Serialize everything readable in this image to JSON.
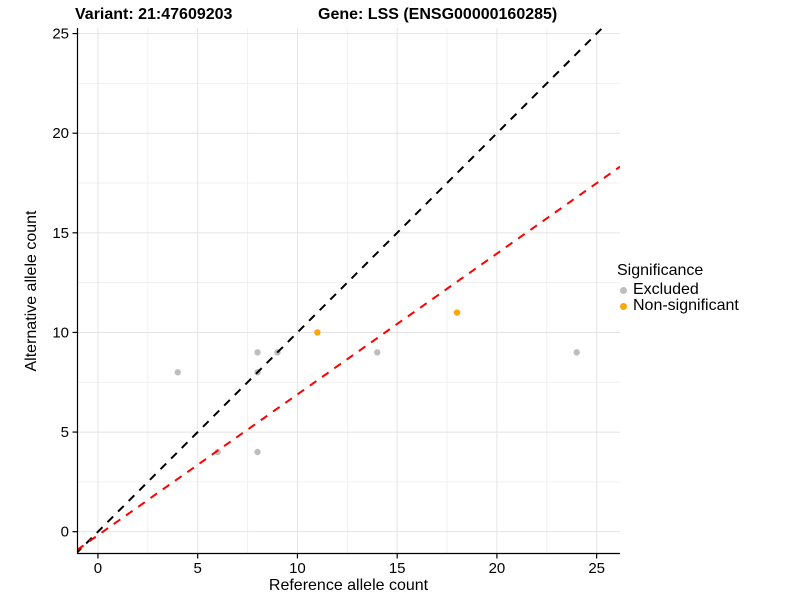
{
  "title": {
    "variant": "Variant: 21:47609203",
    "gene": "Gene: LSS (ENSG00000160285)"
  },
  "chart_data": {
    "type": "scatter",
    "xlabel": "Reference allele count",
    "ylabel": "Alternative allele count",
    "xlim": [
      -1.05,
      26.17
    ],
    "ylim": [
      -1.12,
      25.28
    ],
    "xticks": [
      0,
      5,
      10,
      15,
      20,
      25
    ],
    "yticks": [
      0,
      5,
      10,
      15,
      20,
      25
    ],
    "minor_xticks": [
      2.5,
      7.5,
      12.5,
      17.5,
      22.5
    ],
    "minor_yticks": [
      2.5,
      7.5,
      12.5,
      17.5,
      22.5
    ],
    "grid": true,
    "colors": {
      "excluded": "#BEBEBE",
      "non_significant": "#FFA500",
      "identity_line": "#000000",
      "fit_line": "#FF0000",
      "grid_major": "#E4E4E4",
      "grid_minor": "#F1F1F1",
      "axis_line": "#000000"
    },
    "series": [
      {
        "name": "Excluded",
        "color": "#BEBEBE",
        "points": [
          [
            4,
            8
          ],
          [
            6,
            4
          ],
          [
            8,
            4
          ],
          [
            8,
            8
          ],
          [
            8,
            9
          ],
          [
            9,
            9
          ],
          [
            14,
            9
          ],
          [
            24,
            9
          ]
        ]
      },
      {
        "name": "Non-significant",
        "color": "#FFA500",
        "points": [
          [
            11,
            10
          ],
          [
            18,
            11
          ]
        ]
      }
    ],
    "lines": [
      {
        "name": "identity-line",
        "color": "#000000",
        "dashed": true,
        "x1": -1.12,
        "y1": -1.12,
        "x2": 25.28,
        "y2": 25.28
      },
      {
        "name": "regression-line",
        "color": "#FF0000",
        "dashed": true,
        "x1": -1.05,
        "y1": -0.92,
        "x2": 26.17,
        "y2": 18.32
      }
    ],
    "legend": {
      "title": "Significance",
      "position": "right",
      "entries": [
        {
          "label": "Excluded",
          "color": "#BEBEBE"
        },
        {
          "label": "Non-significant",
          "color": "#FFA500"
        }
      ]
    }
  }
}
